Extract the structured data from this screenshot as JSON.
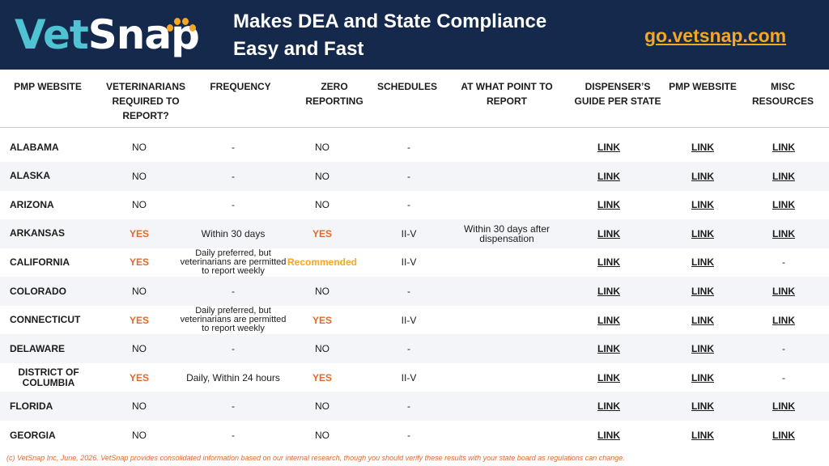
{
  "header": {
    "logo_vet": "Vet",
    "logo_snap": "Snap",
    "tagline_line1": "Makes DEA and State Compliance",
    "tagline_line2": "Easy and Fast",
    "site_link": "go.vetsnap.com"
  },
  "columns": [
    {
      "key": "state",
      "label": "PMP WEBSITE"
    },
    {
      "key": "required",
      "label": "VETERINARIANS REQUIRED TO REPORT?"
    },
    {
      "key": "frequency",
      "label": "FREQUENCY"
    },
    {
      "key": "zero",
      "label": "ZERO REPORTING"
    },
    {
      "key": "schedules",
      "label": "SCHEDULES"
    },
    {
      "key": "when",
      "label": "AT WHAT POINT TO REPORT"
    },
    {
      "key": "guide",
      "label": "DISPENSER’S GUIDE PER STATE"
    },
    {
      "key": "pmp",
      "label": "PMP WEBSITE"
    },
    {
      "key": "misc",
      "label": "MISC RESOURCES"
    }
  ],
  "rows": [
    {
      "state": "ALABAMA",
      "required": "NO",
      "frequency": "-",
      "zero": "NO",
      "schedules": "-",
      "when": "",
      "guide": "LINK",
      "pmp": "LINK",
      "misc": "LINK"
    },
    {
      "state": "ALASKA",
      "required": "NO",
      "frequency": "-",
      "zero": "NO",
      "schedules": "-",
      "when": "",
      "guide": "LINK",
      "pmp": "LINK",
      "misc": "LINK"
    },
    {
      "state": "ARIZONA",
      "required": "NO",
      "frequency": "-",
      "zero": "NO",
      "schedules": "-",
      "when": "",
      "guide": "LINK",
      "pmp": "LINK",
      "misc": "LINK"
    },
    {
      "state": "ARKANSAS",
      "required": "YES",
      "frequency": "Within 30 days",
      "zero": "YES",
      "schedules": "II-V",
      "when": "Within 30 days after dispensation",
      "guide": "LINK",
      "pmp": "LINK",
      "misc": "LINK"
    },
    {
      "state": "CALIFORNIA",
      "required": "YES",
      "frequency": "Daily preferred, but veterinarians are permitted to report weekly",
      "zero": "Recommended",
      "schedules": "II-V",
      "when": "",
      "guide": "LINK",
      "pmp": "LINK",
      "misc": "-"
    },
    {
      "state": "COLORADO",
      "required": "NO",
      "frequency": "-",
      "zero": "NO",
      "schedules": "-",
      "when": "",
      "guide": "LINK",
      "pmp": "LINK",
      "misc": "LINK"
    },
    {
      "state": "CONNECTICUT",
      "required": "YES",
      "frequency": "Daily preferred, but veterinarians are permitted to report weekly",
      "zero": "YES",
      "schedules": "II-V",
      "when": "",
      "guide": "LINK",
      "pmp": "LINK",
      "misc": "LINK"
    },
    {
      "state": "DELAWARE",
      "required": "NO",
      "frequency": "-",
      "zero": "NO",
      "schedules": "-",
      "when": "",
      "guide": "LINK",
      "pmp": "LINK",
      "misc": "-"
    },
    {
      "state": "DISTRICT OF COLUMBIA",
      "required": "YES",
      "frequency": "Daily, Within 24 hours",
      "zero": "YES",
      "schedules": "II-V",
      "when": "",
      "guide": "LINK",
      "pmp": "LINK",
      "misc": "-"
    },
    {
      "state": "FLORIDA",
      "required": "NO",
      "frequency": "-",
      "zero": "NO",
      "schedules": "-",
      "when": "",
      "guide": "LINK",
      "pmp": "LINK",
      "misc": "LINK"
    },
    {
      "state": "GEORGIA",
      "required": "NO",
      "frequency": "-",
      "zero": "NO",
      "schedules": "-",
      "when": "",
      "guide": "LINK",
      "pmp": "LINK",
      "misc": "LINK"
    }
  ],
  "footer": "(c) VetSnap Inc, June, 2026. VetSnap provides consolidated information based on our internal research, though you should verify these results with your state board as regulations can change."
}
